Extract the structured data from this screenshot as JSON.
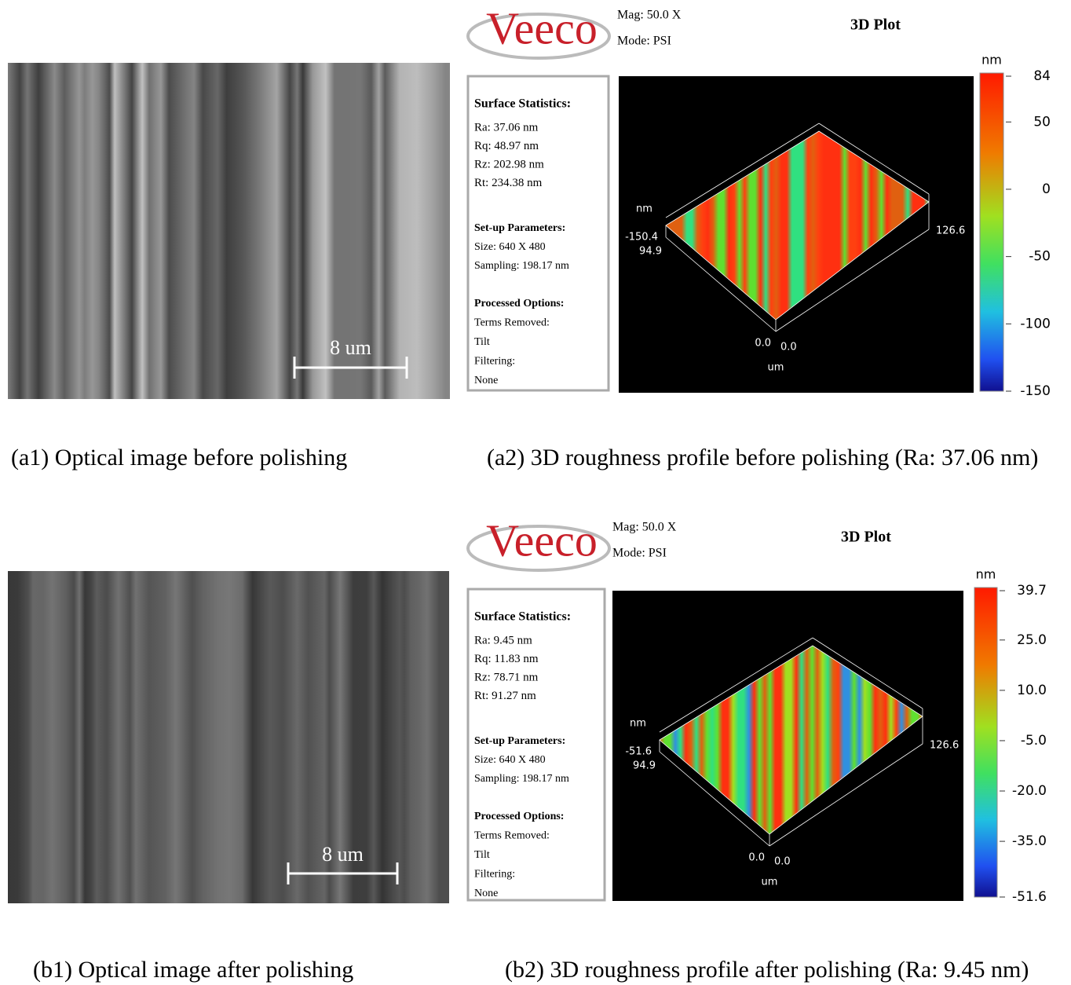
{
  "panels": [
    {
      "optical": {
        "scale_label": "8 um",
        "caption": "(a1) Optical image before polishing"
      },
      "profile": {
        "logo": "Veeco",
        "mag": "Mag:  50.0 X",
        "mode": "Mode:  PSI",
        "plot_title": "3D Plot",
        "stats": {
          "heading": "Surface Statistics:",
          "lines": [
            "Ra:  37.06 nm",
            "Rq:  48.97 nm",
            "Rz:  202.98 nm",
            "Rt:  234.38 nm"
          ]
        },
        "setup": {
          "heading": "Set-up Parameters:",
          "lines": [
            "Size: 640 X 480",
            "Sampling:  198.17 nm"
          ]
        },
        "processed": {
          "heading": "Processed Options:",
          "lines": [
            "Terms Removed:",
            "Tilt",
            "Filtering:",
            "None"
          ]
        },
        "axis": {
          "z_unit": "nm",
          "z_min": "-150.4",
          "y_max": "94.9",
          "x_max": "126.6",
          "x_min": "0.0",
          "y_min": "0.0",
          "xy_unit": "um"
        },
        "colorbar": {
          "unit": "nm",
          "ticks": [
            "84",
            "50",
            "0",
            "-50",
            "-100",
            "-150"
          ]
        },
        "caption": "(a2) 3D roughness profile before polishing (Ra: 37.06 nm)"
      }
    },
    {
      "optical": {
        "scale_label": "8 um",
        "caption": "(b1) Optical image after polishing"
      },
      "profile": {
        "logo": "Veeco",
        "mag": "Mag:  50.0 X",
        "mode": "Mode:  PSI",
        "plot_title": "3D Plot",
        "stats": {
          "heading": "Surface Statistics:",
          "lines": [
            "Ra:  9.45 nm",
            "Rq:  11.83 nm",
            "Rz:  78.71 nm",
            "Rt:  91.27 nm"
          ]
        },
        "setup": {
          "heading": "Set-up Parameters:",
          "lines": [
            "Size: 640 X 480",
            "Sampling:  198.17 nm"
          ]
        },
        "processed": {
          "heading": "Processed Options:",
          "lines": [
            "Terms Removed:",
            "Tilt",
            "Filtering:",
            "None"
          ]
        },
        "axis": {
          "z_unit": "nm",
          "z_min": "-51.6",
          "y_max": "94.9",
          "x_max": "126.6",
          "x_min": "0.0",
          "y_min": "0.0",
          "xy_unit": "um"
        },
        "colorbar": {
          "unit": "nm",
          "ticks": [
            "39.7",
            "25.0",
            "10.0",
            "-5.0",
            "-20.0",
            "-35.0",
            "-51.6"
          ]
        },
        "caption": "(b2) 3D roughness profile after polishing (Ra: 9.45 nm)"
      }
    }
  ]
}
